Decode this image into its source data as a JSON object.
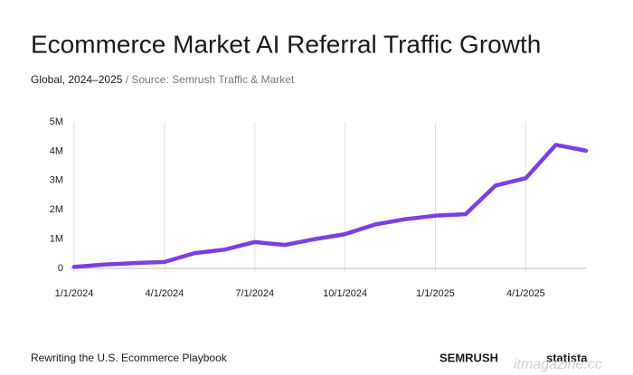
{
  "chart_data": {
    "type": "line",
    "title": "Ecommerce Market AI Referral Traffic Growth",
    "subtitle": "Global, 2024–2025",
    "source_label": "/ Source:",
    "source": "Semrush Traffic & Market",
    "footer": "Rewriting the U.S. Ecommerce Playbook",
    "logos": [
      "SEMRUSH",
      "statista"
    ],
    "watermark": "itmagazine.cc",
    "categories": [
      "1/1/2024",
      null,
      null,
      "4/1/2024",
      null,
      null,
      "7/1/2024",
      null,
      null,
      "10/1/2024",
      null,
      null,
      "1/1/2025",
      null,
      null,
      "4/1/2025",
      null,
      null
    ],
    "series": [
      {
        "name": "AI referral traffic",
        "color": "#7b3fe4",
        "values": [
          50000,
          130000,
          180000,
          220000,
          520000,
          640000,
          900000,
          800000,
          1000000,
          1170000,
          1500000,
          1680000,
          1800000,
          1850000,
          2830000,
          3080000,
          4220000,
          4020000
        ]
      }
    ],
    "ylim": [
      0,
      5000000
    ],
    "yticks": [
      {
        "value": 0,
        "label": "0"
      },
      {
        "value": 1000000,
        "label": "1M"
      },
      {
        "value": 2000000,
        "label": "2M"
      },
      {
        "value": 3000000,
        "label": "3M"
      },
      {
        "value": 4000000,
        "label": "4M"
      },
      {
        "value": 5000000,
        "label": "5M"
      }
    ],
    "grid": "x"
  }
}
